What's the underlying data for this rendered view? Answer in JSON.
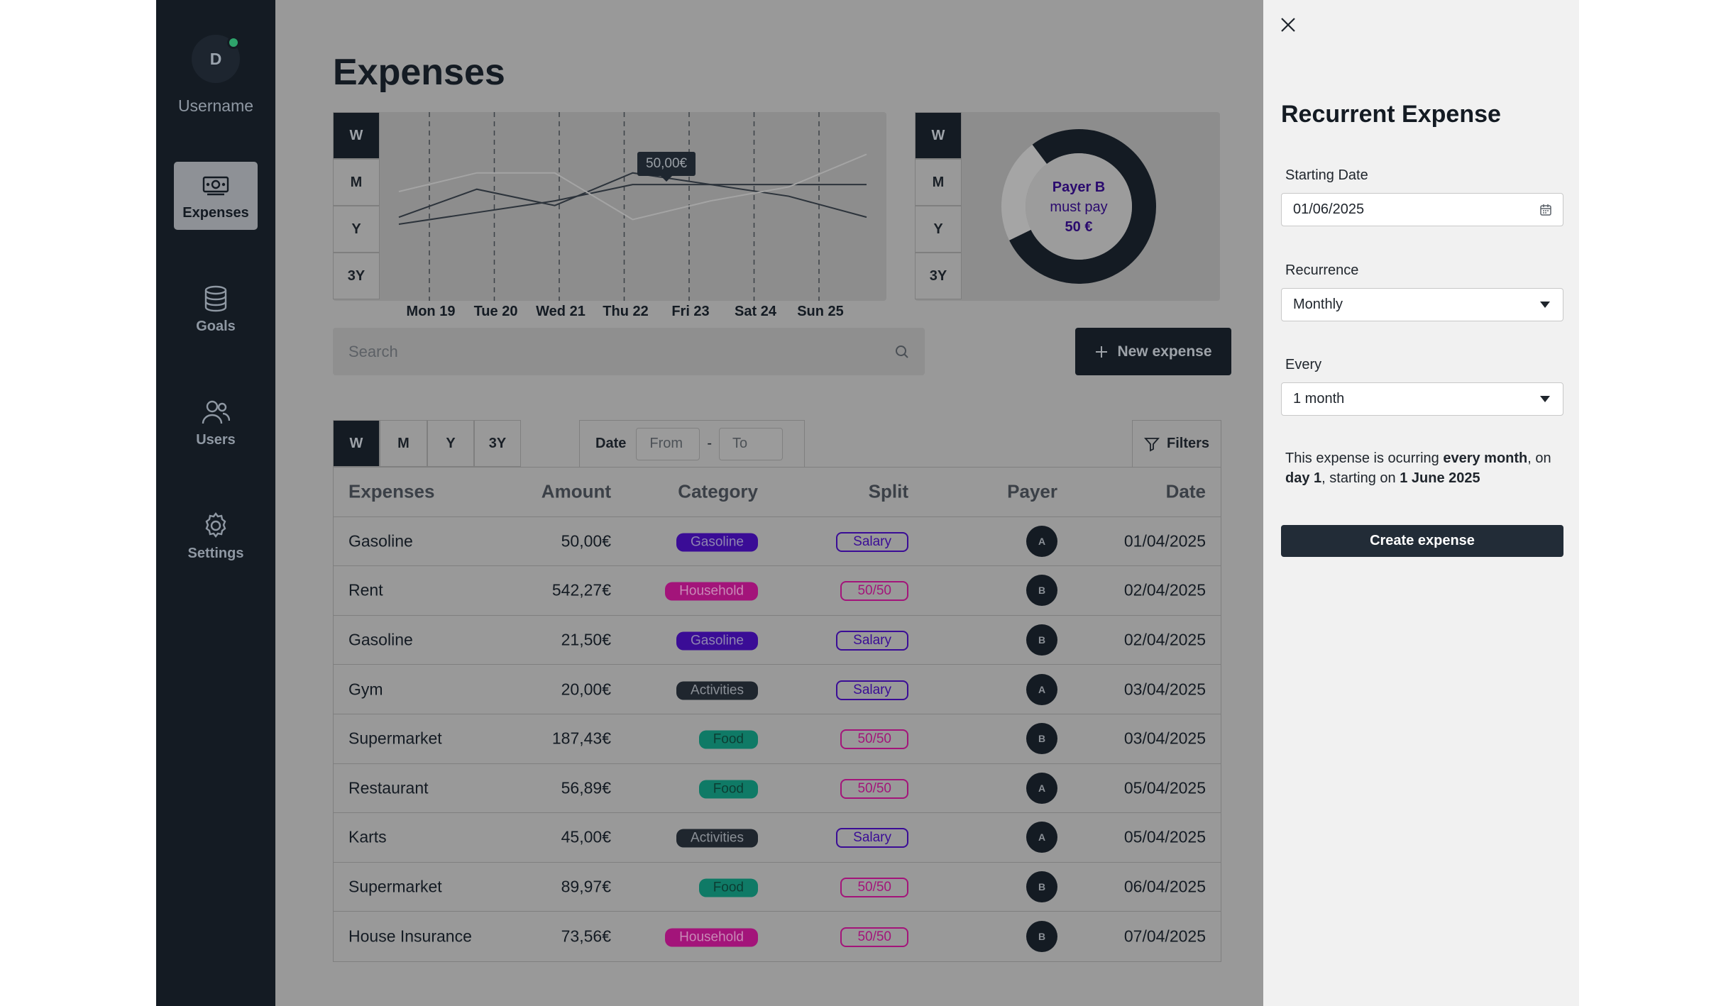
{
  "sidebar": {
    "avatar_initial": "D",
    "username": "Username",
    "items": [
      {
        "label": "Expenses",
        "icon": "money-icon",
        "active": true
      },
      {
        "label": "Goals",
        "icon": "database-icon",
        "active": false
      },
      {
        "label": "Users",
        "icon": "users-icon",
        "active": false
      },
      {
        "label": "Settings",
        "icon": "gear-icon",
        "active": false
      }
    ]
  },
  "main": {
    "title": "Expenses",
    "chart_tabs": [
      "W",
      "M",
      "Y",
      "3Y"
    ],
    "donut_tabs": [
      "W",
      "M",
      "Y",
      "3Y"
    ],
    "donut": {
      "line1": "Payer B",
      "line2": "must pay",
      "line3": "50 €"
    },
    "search_placeholder": "Search",
    "new_expense_label": "New expense",
    "filter_tabs": [
      "W",
      "M",
      "Y",
      "3Y"
    ],
    "date_filter": {
      "label": "Date",
      "from_placeholder": "From",
      "dash": "-",
      "to_placeholder": "To"
    },
    "filters_label": "Filters",
    "table": {
      "headers": [
        "Expenses",
        "Amount",
        "Category",
        "Split",
        "Payer",
        "Date"
      ],
      "rows": [
        {
          "expense": "Gasoline",
          "amount": "50,00€",
          "category": "Gasoline",
          "split": "Salary",
          "payer": "A",
          "date": "01/04/2025"
        },
        {
          "expense": "Rent",
          "amount": "542,27€",
          "category": "Household",
          "split": "50/50",
          "payer": "B",
          "date": "02/04/2025"
        },
        {
          "expense": "Gasoline",
          "amount": "21,50€",
          "category": "Gasoline",
          "split": "Salary",
          "payer": "B",
          "date": "02/04/2025"
        },
        {
          "expense": "Gym",
          "amount": "20,00€",
          "category": "Activities",
          "split": "Salary",
          "payer": "A",
          "date": "03/04/2025"
        },
        {
          "expense": "Supermarket",
          "amount": "187,43€",
          "category": "Food",
          "split": "50/50",
          "payer": "B",
          "date": "03/04/2025"
        },
        {
          "expense": "Restaurant",
          "amount": "56,89€",
          "category": "Food",
          "split": "50/50",
          "payer": "A",
          "date": "05/04/2025"
        },
        {
          "expense": "Karts",
          "amount": "45,00€",
          "category": "Activities",
          "split": "Salary",
          "payer": "A",
          "date": "05/04/2025"
        },
        {
          "expense": "Supermarket",
          "amount": "89,97€",
          "category": "Food",
          "split": "50/50",
          "payer": "B",
          "date": "06/04/2025"
        },
        {
          "expense": "House Insurance",
          "amount": "73,56€",
          "category": "Household",
          "split": "50/50",
          "payer": "B",
          "date": "07/04/2025"
        }
      ]
    },
    "category_colors": {
      "Gasoline": {
        "bg": "#3a0c96",
        "fg": "#8e85b0"
      },
      "Household": {
        "bg": "#a3147a",
        "fg": "#c889b6"
      },
      "Activities": {
        "bg": "#1f262e",
        "fg": "#8b9097"
      },
      "Food": {
        "bg": "#0f7a66",
        "fg": "#0c3d33"
      }
    },
    "split_colors": {
      "Salary": {
        "border": "#3a0c96",
        "fg": "#3a0c96"
      },
      "50/50": {
        "border": "#a3147a",
        "fg": "#a3147a"
      }
    }
  },
  "chart_data": {
    "type": "line",
    "x": [
      "Mon 19",
      "Tue 20",
      "Wed 21",
      "Thu 22",
      "Fri 23",
      "Sat 24",
      "Sun 25"
    ],
    "tooltip": "50,00€",
    "series": [
      {
        "values": [
          31,
          43,
          36,
          50,
          45,
          40,
          31
        ],
        "color": "#2c333b"
      },
      {
        "values": [
          28,
          33,
          38,
          45,
          45,
          45,
          45
        ],
        "color": "#2c333b"
      },
      {
        "values": [
          42,
          50,
          50,
          30,
          38,
          44,
          58
        ],
        "color": "#a4a4a4"
      }
    ],
    "ylim": [
      0,
      70
    ]
  },
  "donut_data": {
    "type": "pie",
    "values": [
      78,
      22
    ],
    "colors": [
      "#141b23",
      "#a5a5a5"
    ]
  },
  "panel": {
    "title": "Recurrent Expense",
    "starting_date_label": "Starting Date",
    "starting_date_value": "01/06/2025",
    "recurrence_label": "Recurrence",
    "recurrence_value": "Monthly",
    "every_label": "Every",
    "every_value": "1 month",
    "desc_parts": [
      "This expense is ocurring ",
      "every month",
      ", on ",
      "day 1",
      ", starting on ",
      "1 June 2025"
    ],
    "create_label": "Create expense"
  }
}
